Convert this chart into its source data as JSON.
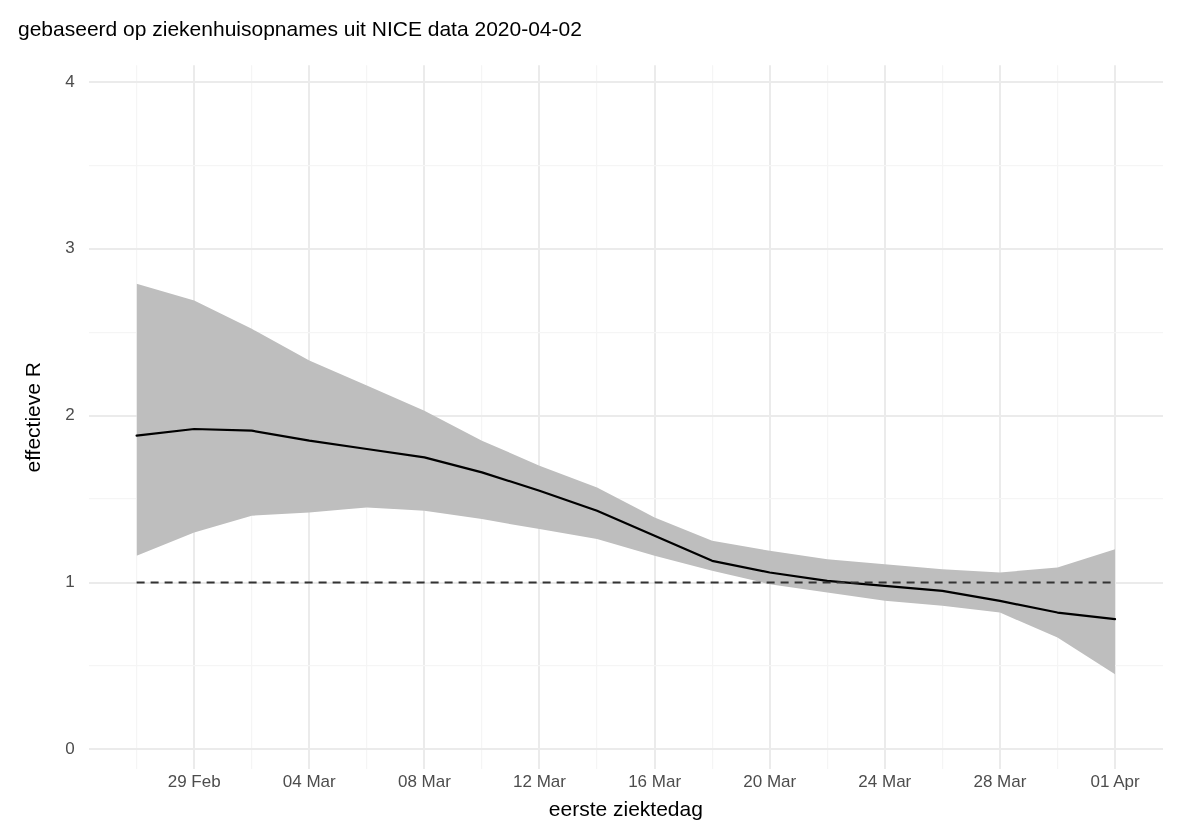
{
  "chart_data": {
    "type": "line",
    "title": "gebaseerd op ziekenhuisopnames uit NICE data 2020-04-02",
    "xlabel": "eerste ziektedag",
    "ylabel": "effectieve R",
    "x": [
      "2020-02-27",
      "2020-02-29",
      "2020-03-02",
      "2020-03-04",
      "2020-03-06",
      "2020-03-08",
      "2020-03-10",
      "2020-03-12",
      "2020-03-14",
      "2020-03-16",
      "2020-03-18",
      "2020-03-20",
      "2020-03-22",
      "2020-03-24",
      "2020-03-26",
      "2020-03-28",
      "2020-03-30",
      "2020-04-01"
    ],
    "series": [
      {
        "color": "#000000",
        "values": [
          1.88,
          1.92,
          1.91,
          1.85,
          1.8,
          1.75,
          1.66,
          1.55,
          1.43,
          1.28,
          1.13,
          1.06,
          1.01,
          0.98,
          0.95,
          0.89,
          0.82,
          0.78
        ],
        "upper": [
          2.79,
          2.69,
          2.52,
          2.33,
          2.18,
          2.03,
          1.85,
          1.7,
          1.57,
          1.39,
          1.25,
          1.19,
          1.14,
          1.11,
          1.08,
          1.06,
          1.09,
          1.2
        ],
        "lower": [
          1.16,
          1.3,
          1.4,
          1.42,
          1.45,
          1.43,
          1.38,
          1.32,
          1.26,
          1.16,
          1.07,
          0.99,
          0.94,
          0.89,
          0.86,
          0.82,
          0.67,
          0.45
        ]
      }
    ],
    "xlim": [
      "2020-02-25T08:00",
      "2020-04-02T16:00"
    ],
    "xticks": [
      {
        "value": "2020-02-27",
        "label": null
      },
      {
        "value": "2020-02-29",
        "label": "29 Feb"
      },
      {
        "value": "2020-03-02",
        "label": null
      },
      {
        "value": "2020-03-04",
        "label": "04 Mar"
      },
      {
        "value": "2020-03-06",
        "label": null
      },
      {
        "value": "2020-03-08",
        "label": "08 Mar"
      },
      {
        "value": "2020-03-10",
        "label": null
      },
      {
        "value": "2020-03-12",
        "label": "12 Mar"
      },
      {
        "value": "2020-03-14",
        "label": null
      },
      {
        "value": "2020-03-16",
        "label": "16 Mar"
      },
      {
        "value": "2020-03-18",
        "label": null
      },
      {
        "value": "2020-03-20",
        "label": "20 Mar"
      },
      {
        "value": "2020-03-22",
        "label": null
      },
      {
        "value": "2020-03-24",
        "label": "24 Mar"
      },
      {
        "value": "2020-03-26",
        "label": null
      },
      {
        "value": "2020-03-28",
        "label": "28 Mar"
      },
      {
        "value": "2020-03-30",
        "label": null
      },
      {
        "value": "2020-04-01",
        "label": "01 Apr"
      }
    ],
    "ylim": [
      -0.12,
      4.1
    ],
    "yticks": [
      0,
      {
        "value": 0.5,
        "label": null
      },
      1,
      {
        "value": 1.5,
        "label": null
      },
      2,
      {
        "value": 2.5,
        "label": null
      },
      3,
      {
        "value": 3.5,
        "label": null
      },
      4
    ],
    "ref_lines": [
      {
        "axis": "y",
        "value": 1,
        "color": "#333333",
        "line_style": "dashed"
      }
    ],
    "grid": true,
    "legend": false,
    "marker": "none",
    "line_style": "solid"
  }
}
